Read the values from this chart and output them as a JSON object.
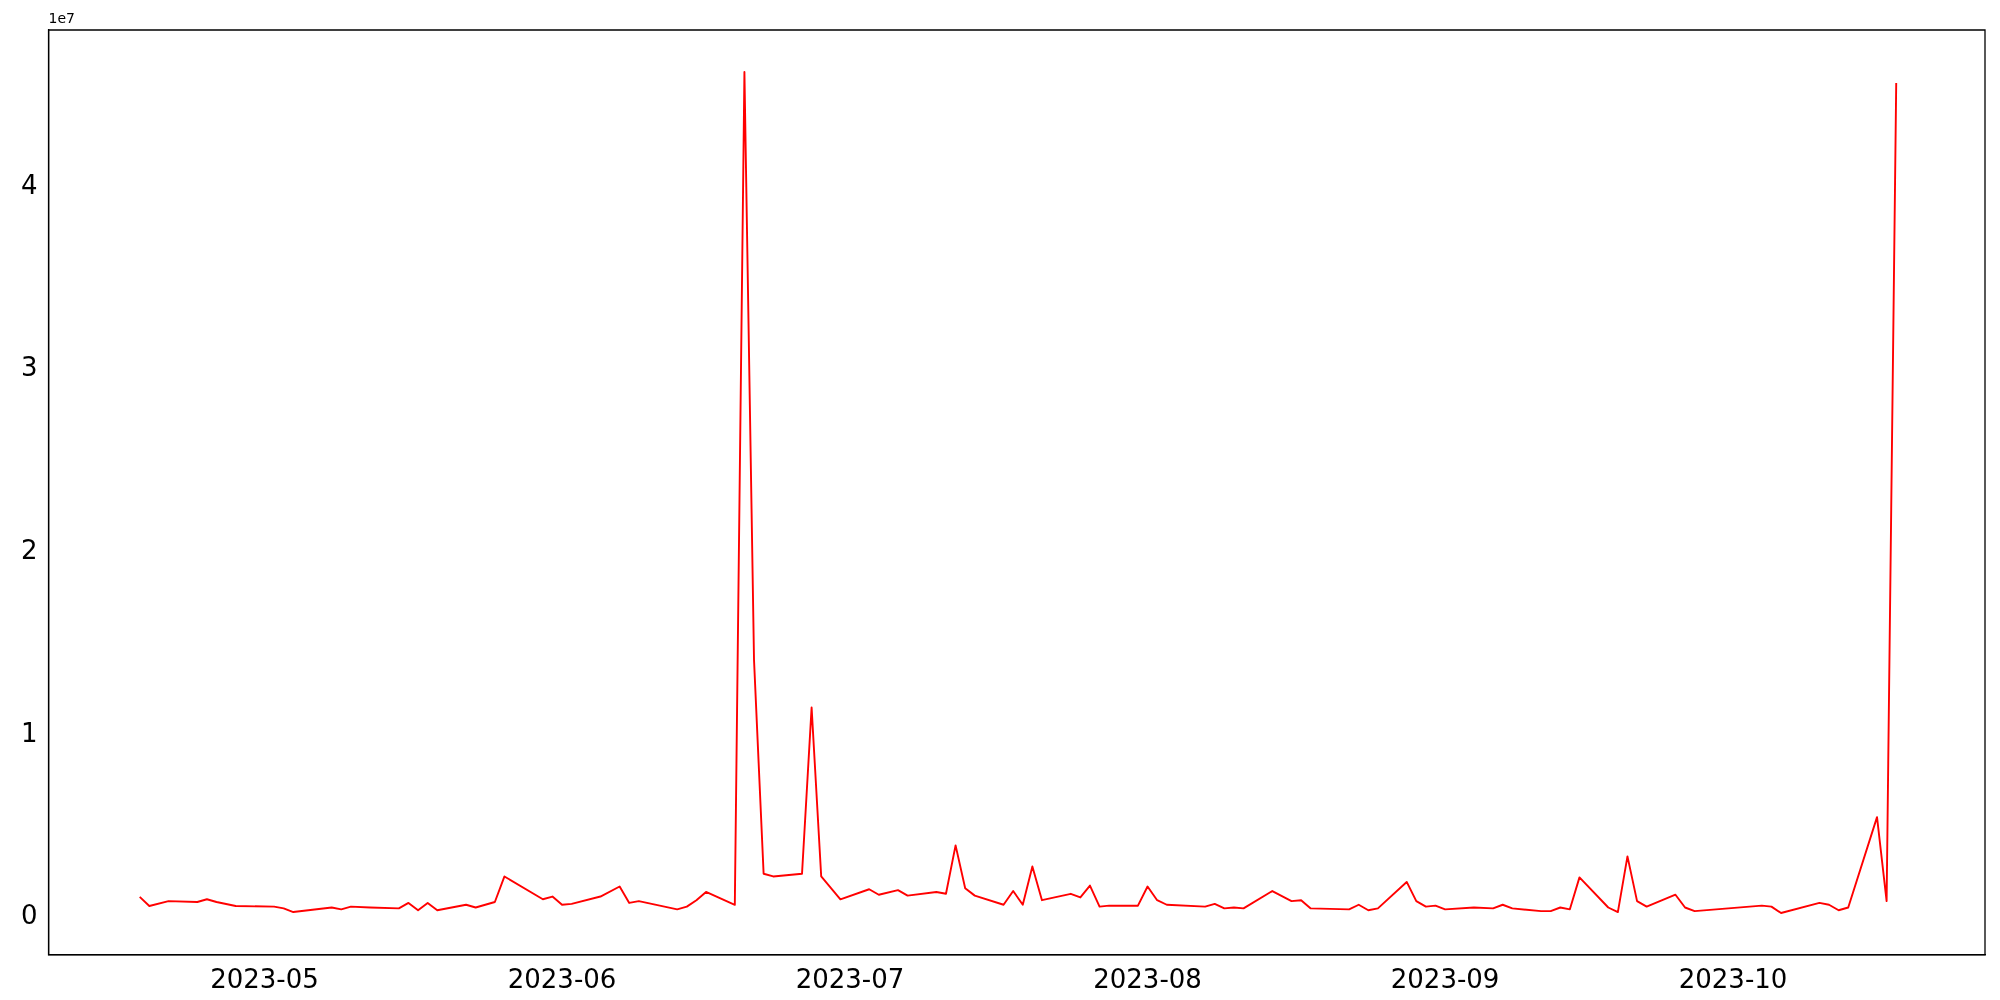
{
  "chart_data": {
    "type": "line",
    "annotations": [
      "1e7"
    ],
    "marker": "none",
    "line_style": "solid",
    "legend": false,
    "grid": false,
    "xlim": [
      "2023-04-08T12:00",
      "2023-10-27T06:00"
    ],
    "xticks": [
      {
        "value": "2023-05-01",
        "label": "2023-05"
      },
      {
        "value": "2023-06-01",
        "label": "2023-06"
      },
      {
        "value": "2023-07-01",
        "label": "2023-07"
      },
      {
        "value": "2023-08-01",
        "label": "2023-08"
      },
      {
        "value": "2023-09-01",
        "label": "2023-09"
      },
      {
        "value": "2023-10-01",
        "label": "2023-10"
      }
    ],
    "ylim": [
      -0.204,
      4.86
    ],
    "yticks": [
      0,
      1,
      2,
      3,
      4
    ],
    "series": [
      {
        "color": "#ff0000",
        "x": [
          "2023-04-18",
          "2023-04-19",
          "2023-04-21",
          "2023-04-24",
          "2023-04-25",
          "2023-04-26",
          "2023-04-28",
          "2023-05-02",
          "2023-05-03",
          "2023-05-04",
          "2023-05-08",
          "2023-05-09",
          "2023-05-10",
          "2023-05-12",
          "2023-05-15",
          "2023-05-16",
          "2023-05-17",
          "2023-05-18",
          "2023-05-19",
          "2023-05-22",
          "2023-05-23",
          "2023-05-25",
          "2023-05-26",
          "2023-05-30",
          "2023-05-31",
          "2023-06-01",
          "2023-06-02",
          "2023-06-05",
          "2023-06-07",
          "2023-06-08",
          "2023-06-09",
          "2023-06-13",
          "2023-06-14",
          "2023-06-15",
          "2023-06-16",
          "2023-06-19",
          "2023-06-20",
          "2023-06-21",
          "2023-06-22",
          "2023-06-23",
          "2023-06-26",
          "2023-06-27",
          "2023-06-28",
          "2023-06-30",
          "2023-07-03",
          "2023-07-04",
          "2023-07-06",
          "2023-07-07",
          "2023-07-10",
          "2023-07-11",
          "2023-07-12",
          "2023-07-13",
          "2023-07-14",
          "2023-07-17",
          "2023-07-18",
          "2023-07-19",
          "2023-07-20",
          "2023-07-21",
          "2023-07-24",
          "2023-07-25",
          "2023-07-26",
          "2023-07-27",
          "2023-07-28",
          "2023-07-31",
          "2023-08-01",
          "2023-08-02",
          "2023-08-03",
          "2023-08-07",
          "2023-08-08",
          "2023-08-09",
          "2023-08-10",
          "2023-08-11",
          "2023-08-14",
          "2023-08-16",
          "2023-08-17",
          "2023-08-18",
          "2023-08-22",
          "2023-08-23",
          "2023-08-24",
          "2023-08-25",
          "2023-08-28",
          "2023-08-29",
          "2023-08-30",
          "2023-08-31",
          "2023-09-01",
          "2023-09-04",
          "2023-09-06",
          "2023-09-07",
          "2023-09-08",
          "2023-09-11",
          "2023-09-12",
          "2023-09-13",
          "2023-09-14",
          "2023-09-15",
          "2023-09-18",
          "2023-09-19",
          "2023-09-20",
          "2023-09-21",
          "2023-09-22",
          "2023-09-25",
          "2023-09-26",
          "2023-09-27",
          "2023-10-04",
          "2023-10-05",
          "2023-10-06",
          "2023-10-10",
          "2023-10-11",
          "2023-10-12",
          "2023-10-13",
          "2023-10-16",
          "2023-10-17",
          "2023-10-18"
        ],
        "values": [
          0.113,
          0.063,
          0.09,
          0.085,
          0.1,
          0.085,
          0.063,
          0.06,
          0.05,
          0.03,
          0.055,
          0.045,
          0.06,
          0.055,
          0.05,
          0.08,
          0.04,
          0.08,
          0.04,
          0.07,
          0.055,
          0.085,
          0.225,
          0.1,
          0.115,
          0.07,
          0.075,
          0.115,
          0.17,
          0.08,
          0.09,
          0.045,
          0.06,
          0.095,
          0.14,
          0.07,
          4.63,
          1.41,
          0.24,
          0.225,
          0.24,
          1.15,
          0.225,
          0.1,
          0.155,
          0.125,
          0.15,
          0.12,
          0.14,
          0.13,
          0.395,
          0.16,
          0.12,
          0.07,
          0.145,
          0.07,
          0.28,
          0.095,
          0.13,
          0.11,
          0.175,
          0.06,
          0.065,
          0.065,
          0.17,
          0.095,
          0.07,
          0.06,
          0.075,
          0.05,
          0.055,
          0.05,
          0.145,
          0.09,
          0.095,
          0.05,
          0.045,
          0.07,
          0.04,
          0.05,
          0.195,
          0.09,
          0.06,
          0.065,
          0.045,
          0.055,
          0.05,
          0.07,
          0.05,
          0.035,
          0.035,
          0.055,
          0.045,
          0.22,
          0.055,
          0.03,
          0.335,
          0.09,
          0.06,
          0.125,
          0.055,
          0.035,
          0.065,
          0.06,
          0.025,
          0.08,
          0.07,
          0.04,
          0.055,
          0.55,
          0.09,
          4.57
        ]
      }
    ]
  }
}
